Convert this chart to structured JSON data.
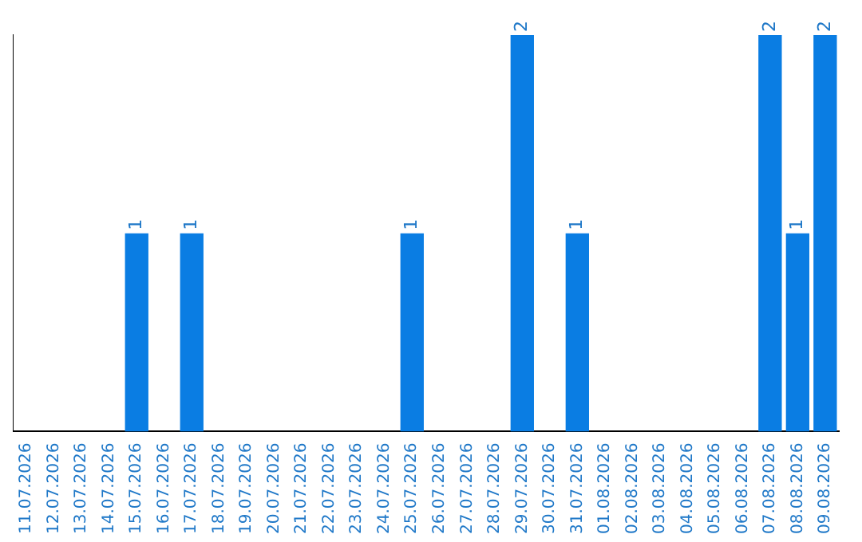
{
  "chart_data": {
    "type": "bar",
    "categories": [
      "11.07.2026",
      "12.07.2026",
      "13.07.2026",
      "14.07.2026",
      "15.07.2026",
      "16.07.2026",
      "17.07.2026",
      "18.07.2026",
      "19.07.2026",
      "20.07.2026",
      "21.07.2026",
      "22.07.2026",
      "23.07.2026",
      "24.07.2026",
      "25.07.2026",
      "26.07.2026",
      "27.07.2026",
      "28.07.2026",
      "29.07.2026",
      "30.07.2026",
      "31.07.2026",
      "01.08.2026",
      "02.08.2026",
      "03.08.2026",
      "04.08.2026",
      "05.08.2026",
      "06.08.2026",
      "07.08.2026",
      "08.08.2026",
      "09.08.2026"
    ],
    "values": [
      0,
      0,
      0,
      0,
      1,
      0,
      1,
      0,
      0,
      0,
      0,
      0,
      0,
      0,
      1,
      0,
      0,
      0,
      2,
      0,
      1,
      0,
      0,
      0,
      0,
      0,
      0,
      2,
      1,
      2
    ],
    "value_labels": [
      null,
      null,
      null,
      null,
      "1",
      null,
      "1",
      null,
      null,
      null,
      null,
      null,
      null,
      null,
      "1",
      null,
      null,
      null,
      "2",
      null,
      "1",
      null,
      null,
      null,
      null,
      null,
      null,
      "2",
      "1",
      "2"
    ],
    "color": "#0a7de3",
    "ylim": [
      0,
      2
    ],
    "tick_labels": "x",
    "grid": false,
    "legend": false
  }
}
